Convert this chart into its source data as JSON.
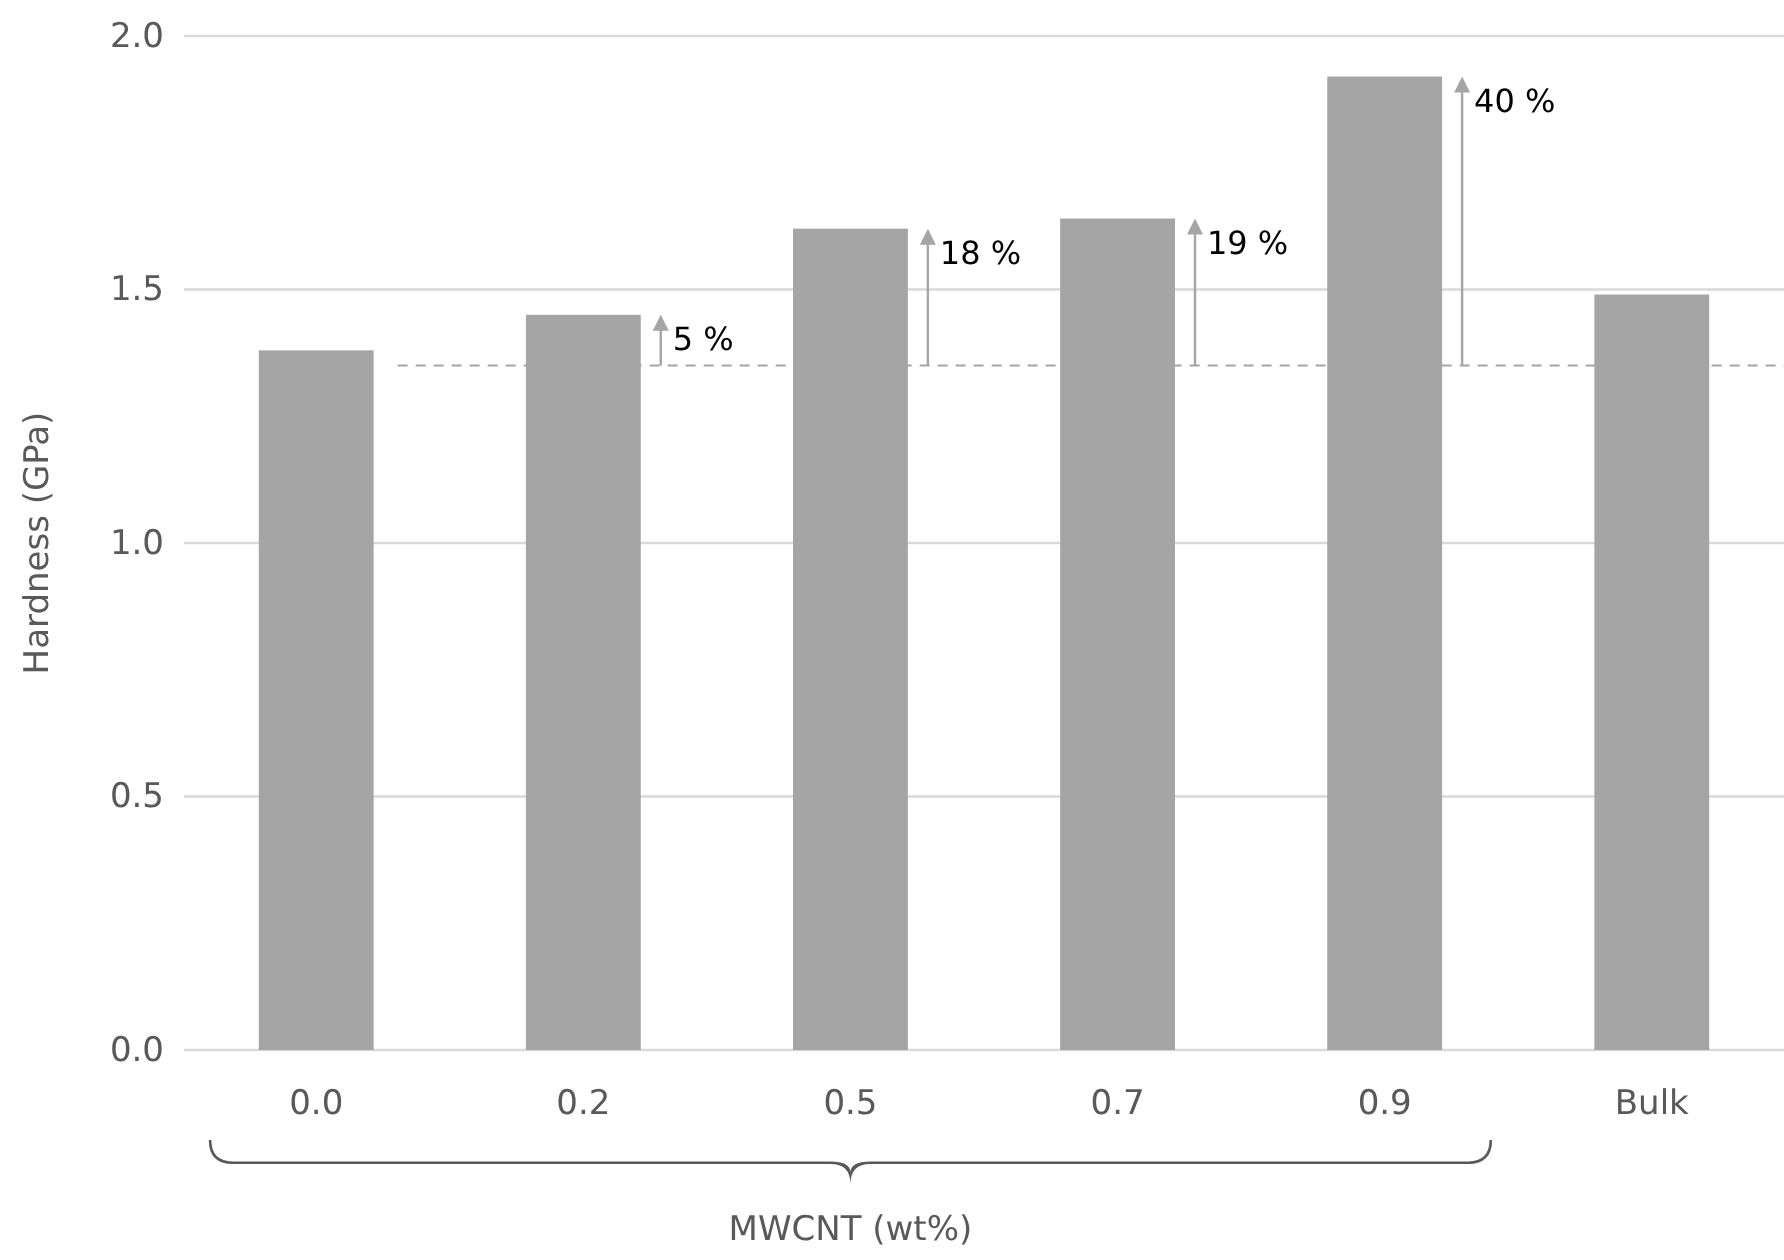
{
  "chart_data": {
    "type": "bar",
    "xlabel": "MWCNT (wt%)",
    "ylabel": "Hardness (GPa)",
    "categories": [
      "0.0",
      "0.2",
      "0.5",
      "0.7",
      "0.9",
      "Bulk"
    ],
    "values": [
      1.38,
      1.45,
      1.62,
      1.64,
      1.92,
      1.49
    ],
    "color": "#a5a5a5",
    "ylim": [
      0,
      2.0
    ],
    "yticks": [
      {
        "value": 0,
        "label": "0.0"
      },
      {
        "value": 0.5,
        "label": "0.5"
      },
      {
        "value": 1,
        "label": "1.0"
      },
      {
        "value": 1.5,
        "label": "1.5"
      },
      {
        "value": 2,
        "label": "2.0"
      }
    ],
    "grid": "y",
    "ref_lines": [
      {
        "axis": "y",
        "value": 1.35,
        "color": "#a5a5a5",
        "line_style": "dashed"
      }
    ],
    "annotations": [
      {
        "text": "5 %",
        "x": "0.2",
        "y": 1.45
      },
      {
        "text": "18 %",
        "x": "0.5",
        "y": 1.62
      },
      {
        "text": "19 %",
        "x": "0.7",
        "y": 1.64
      },
      {
        "text": "40 %",
        "x": "0.9",
        "y": 1.92
      }
    ]
  }
}
